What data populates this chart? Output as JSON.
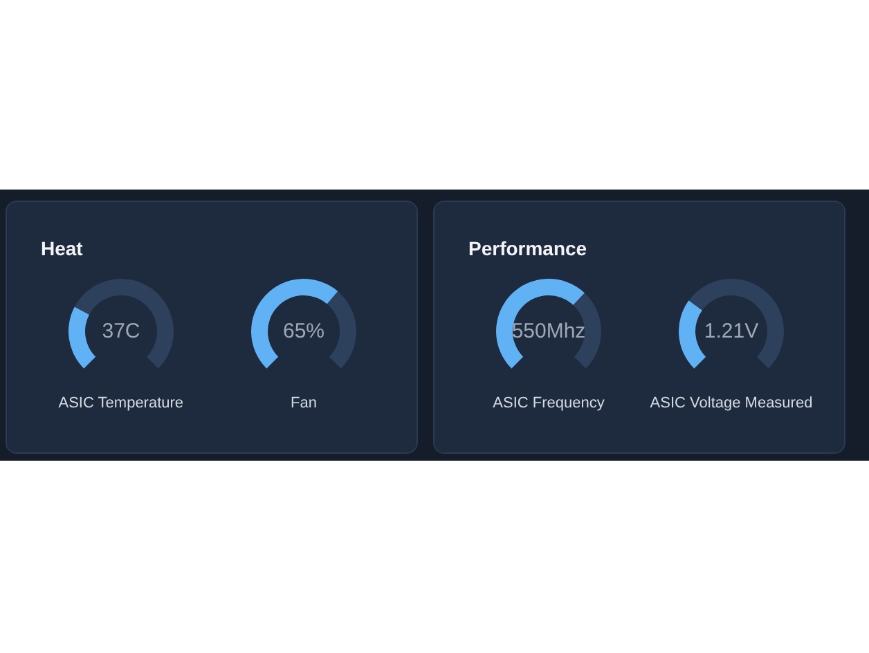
{
  "chart_data": [
    {
      "type": "donut",
      "title": "Heat",
      "xlabel": "ASIC Temperature",
      "categories": [
        null,
        null
      ],
      "values": [
        27,
        73
      ],
      "colors": [
        "#60b2f5",
        "#2d405c"
      ],
      "annotations": [
        "37C"
      ]
    },
    {
      "type": "donut",
      "xlabel": "Fan",
      "categories": [
        null,
        null
      ],
      "values": [
        65,
        35
      ],
      "colors": [
        "#60b2f5",
        "#2d405c"
      ],
      "annotations": [
        "65%"
      ]
    },
    {
      "type": "donut",
      "title": "Performance",
      "xlabel": "ASIC Frequency",
      "categories": [
        null,
        null
      ],
      "values": [
        66,
        34
      ],
      "colors": [
        "#60b2f5",
        "#2d405c"
      ],
      "annotations": [
        "550Mhz"
      ]
    },
    {
      "type": "donut",
      "xlabel": "ASIC Voltage Measured",
      "categories": [
        null,
        null
      ],
      "values": [
        30,
        70
      ],
      "colors": [
        "#60b2f5",
        "#2d405c"
      ],
      "annotations": [
        "1.21V"
      ]
    }
  ]
}
